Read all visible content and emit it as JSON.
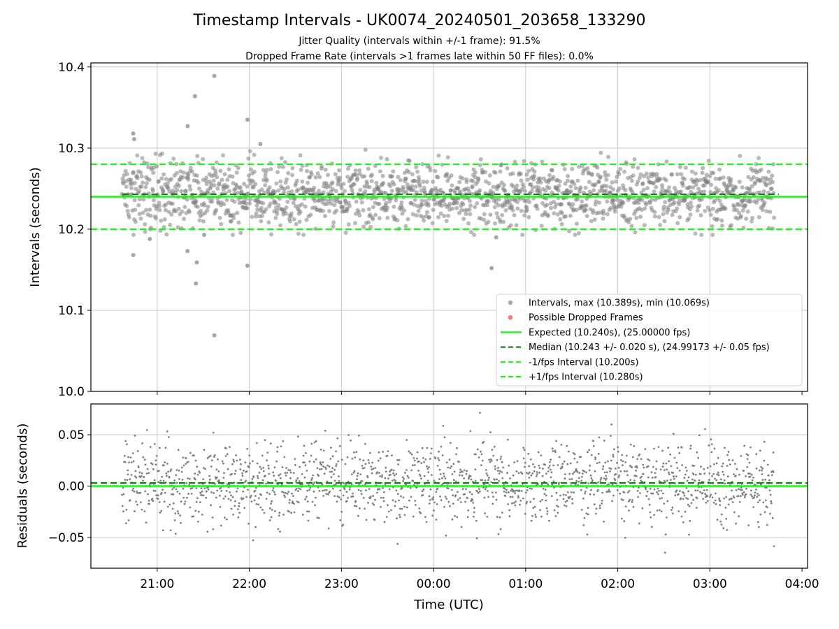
{
  "title": "Timestamp Intervals - UK0074_20240501_203658_133290",
  "subtitle1": "Jitter Quality (intervals within +/-1 frame): 91.5%",
  "subtitle2": "Dropped Frame Rate (intervals >1 frames late within 50 FF files): 0.0%",
  "colors": {
    "scatter": "#808080",
    "expected": "#22ee22",
    "median": "#1a7a1a",
    "fps_band": "#22ee22",
    "dropped": "#ff6666",
    "grid": "#c8c8c8"
  },
  "chart_data": [
    {
      "type": "scatter",
      "panel": "top",
      "ylabel": "Intervals (seconds)",
      "ylim": [
        10.0,
        10.405
      ],
      "xlim_hours": [
        20.28,
        28.06
      ],
      "yticks": [
        "10.0",
        "10.1",
        "10.2",
        "10.3",
        "10.4"
      ],
      "grid": true,
      "legend_position": "lower-right",
      "legend": [
        {
          "label": "Intervals, max (10.389s), min (10.069s)",
          "kind": "dot",
          "color": "#a0a0a0"
        },
        {
          "label": "Possible Dropped Frames",
          "kind": "dot",
          "color": "#ff6666"
        },
        {
          "label": "Expected (10.240s), (25.00000 fps)",
          "kind": "line",
          "color": "#22ee22"
        },
        {
          "label": "Median (10.243 +/- 0.020 s), (24.99173 +/- 0.05 fps)",
          "kind": "dash",
          "color": "#1a7a1a"
        },
        {
          "label": "-1/fps Interval (10.200s)",
          "kind": "dash",
          "color": "#22ee22"
        },
        {
          "label": "+1/fps Interval (10.280s)",
          "kind": "dash",
          "color": "#22ee22"
        }
      ],
      "reference_lines": {
        "expected": 10.24,
        "median": 10.243,
        "minus_fps": 10.2,
        "plus_fps": 10.28
      },
      "series": [
        {
          "name": "Intervals",
          "band": {
            "x_start": 20.62,
            "x_end": 27.7,
            "center": 10.243,
            "spread": 0.02,
            "approx_points": 1700
          },
          "outliers": [
            {
              "x": 20.74,
              "y": 10.318
            },
            {
              "x": 20.75,
              "y": 10.311
            },
            {
              "x": 20.74,
              "y": 10.168
            },
            {
              "x": 20.92,
              "y": 10.188
            },
            {
              "x": 21.33,
              "y": 10.327
            },
            {
              "x": 21.33,
              "y": 10.173
            },
            {
              "x": 21.41,
              "y": 10.364
            },
            {
              "x": 21.43,
              "y": 10.159
            },
            {
              "x": 21.42,
              "y": 10.133
            },
            {
              "x": 21.62,
              "y": 10.389
            },
            {
              "x": 21.62,
              "y": 10.069
            },
            {
              "x": 21.98,
              "y": 10.335
            },
            {
              "x": 21.98,
              "y": 10.155
            },
            {
              "x": 22.12,
              "y": 10.305
            },
            {
              "x": 24.63,
              "y": 10.152
            },
            {
              "x": 24.68,
              "y": 10.19
            },
            {
              "x": 21.51,
              "y": 10.193
            }
          ]
        }
      ]
    },
    {
      "type": "scatter",
      "panel": "bottom",
      "ylabel": "Residuals (seconds)",
      "xlabel": "Time (UTC)",
      "ylim": [
        -0.08,
        0.08
      ],
      "xlim_hours": [
        20.28,
        28.06
      ],
      "yticks": [
        "−0.05",
        "0.00",
        "0.05"
      ],
      "xticks": [
        "21:00",
        "22:00",
        "23:00",
        "00:00",
        "01:00",
        "02:00",
        "03:00",
        "04:00"
      ],
      "grid": true,
      "reference_lines": {
        "expected": 0.0,
        "median": 0.003
      },
      "series": [
        {
          "name": "Residuals",
          "band": {
            "x_start": 20.62,
            "x_end": 27.7,
            "center": 0.003,
            "spread": 0.02,
            "approx_points": 1700
          }
        }
      ]
    }
  ]
}
